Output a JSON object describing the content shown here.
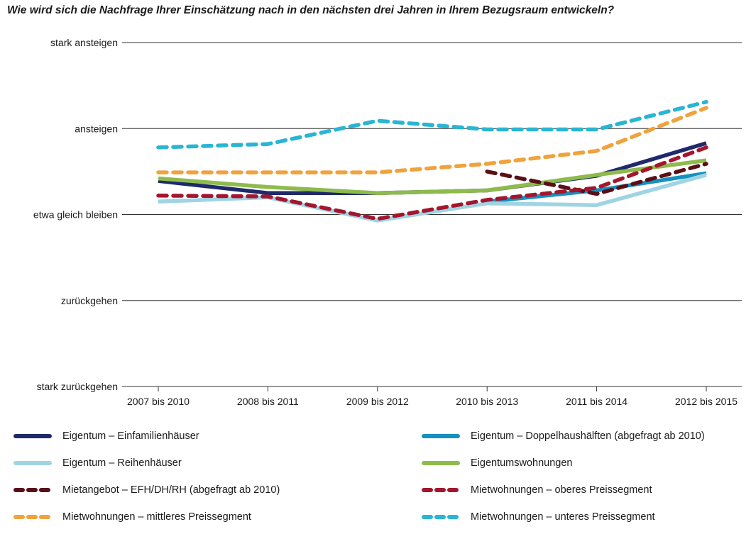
{
  "title": "Wie wird sich die Nachfrage Ihrer Einschätzung nach in den nächsten drei Jahren in Ihrem Bezugsraum entwickeln?",
  "chart_data": {
    "type": "line",
    "categories": [
      "2007 bis 2010",
      "2008 bis 2011",
      "2009 bis 2012",
      "2010 bis 2013",
      "2011 bis 2014",
      "2012 bis 2015"
    ],
    "y_levels": [
      "stark zurückgehen",
      "zurückgehen",
      "etwa gleich bleiben",
      "ansteigen",
      "stark ansteigen"
    ],
    "ylim": [
      -2,
      2
    ],
    "grid": true,
    "legend_position": "bottom",
    "series": [
      {
        "name": "Eigentum – Einfamilienhäuser",
        "color": "#1f2a6b",
        "dash": "solid",
        "values": [
          0.39,
          0.25,
          0.25,
          0.28,
          0.45,
          0.83
        ]
      },
      {
        "name": "Eigentum – Doppelhaushälften (abgefragt ab 2010)",
        "color": "#1591c0",
        "dash": "solid",
        "values": [
          null,
          null,
          null,
          0.15,
          0.28,
          0.48
        ]
      },
      {
        "name": "Eigentum – Reihenhäuser",
        "color": "#9fd4e3",
        "dash": "solid",
        "values": [
          0.15,
          0.2,
          -0.07,
          0.13,
          0.11,
          0.46
        ]
      },
      {
        "name": "Eigentumswohnungen",
        "color": "#8dbb4c",
        "dash": "solid",
        "values": [
          0.42,
          0.32,
          0.25,
          0.28,
          0.46,
          0.63
        ]
      },
      {
        "name": "Mietangebot – EFH/DH/RH (abgefragt ab 2010)",
        "color": "#5a0f16",
        "dash": "dashed",
        "values": [
          null,
          null,
          null,
          0.5,
          0.24,
          0.59
        ]
      },
      {
        "name": "Mietwohnungen – oberes Preissegment",
        "color": "#a3162d",
        "dash": "dashed",
        "values": [
          0.22,
          0.21,
          -0.05,
          0.17,
          0.31,
          0.78
        ]
      },
      {
        "name": "Mietwohnungen – mittleres Preissegment",
        "color": "#f0a23c",
        "dash": "dashed",
        "values": [
          0.49,
          0.49,
          0.49,
          0.59,
          0.74,
          1.24
        ]
      },
      {
        "name": "Mietwohnungen – unteres Preissegment",
        "color": "#29b5d4",
        "dash": "dashed",
        "values": [
          0.78,
          0.82,
          1.09,
          0.99,
          0.99,
          1.31
        ]
      }
    ]
  },
  "legend": [
    {
      "label": "Eigentum – Einfamilienhäuser",
      "color": "#1f2a6b",
      "dash": "solid"
    },
    {
      "label": "Eigentum – Doppelhaushälften (abgefragt ab 2010)",
      "color": "#1591c0",
      "dash": "solid"
    },
    {
      "label": "Eigentum – Reihenhäuser",
      "color": "#9fd4e3",
      "dash": "solid"
    },
    {
      "label": "Eigentumswohnungen",
      "color": "#8dbb4c",
      "dash": "solid"
    },
    {
      "label": "Mietangebot – EFH/DH/RH (abgefragt ab 2010)",
      "color": "#5a0f16",
      "dash": "dashed"
    },
    {
      "label": "Mietwohnungen – oberes Preissegment",
      "color": "#a3162d",
      "dash": "dashed"
    },
    {
      "label": "Mietwohnungen – mittleres Preissegment",
      "color": "#f0a23c",
      "dash": "dashed"
    },
    {
      "label": "Mietwohnungen – unteres Preissegment",
      "color": "#29b5d4",
      "dash": "dashed"
    }
  ]
}
